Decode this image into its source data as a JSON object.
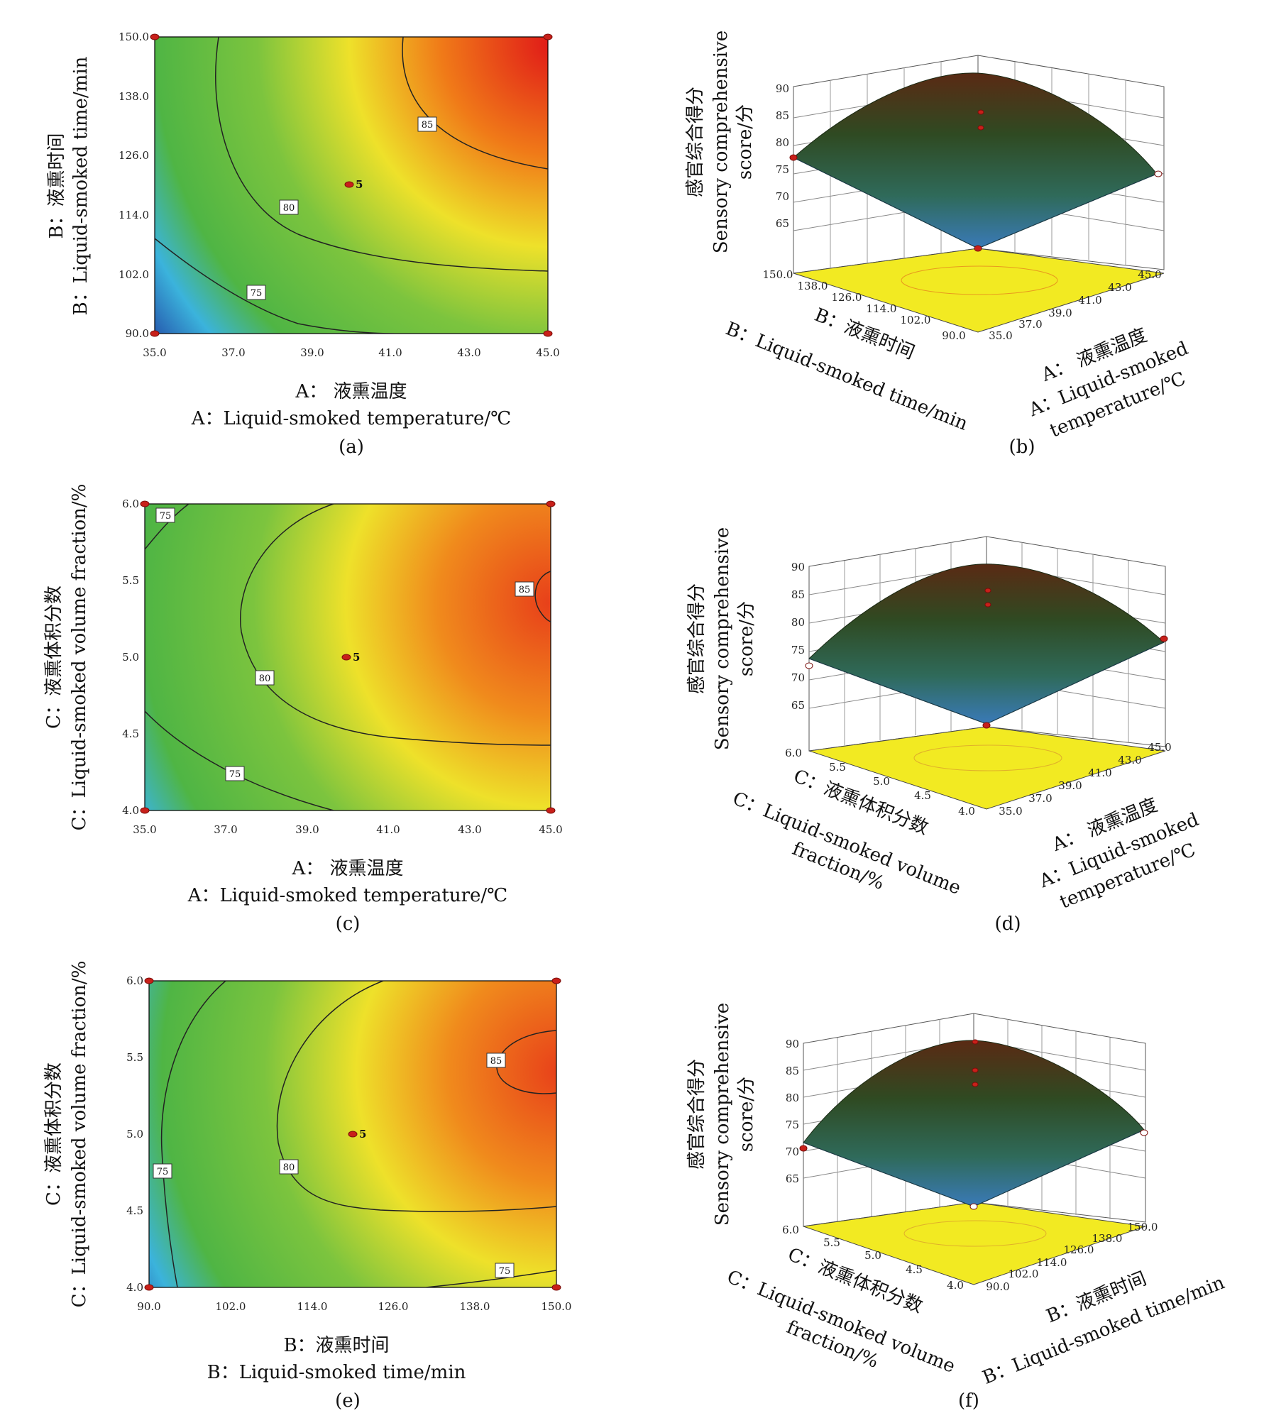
{
  "figure": {
    "captions": [
      "(a)",
      "(b)",
      "(c)",
      "(d)",
      "(e)",
      "(f)"
    ]
  },
  "axis_text": {
    "A_cn": "A： 液熏温度",
    "A_en": "A：Liquid-smoked temperature/℃",
    "A_en_3d": "A：Liquid-smoked",
    "A_en_3d_2": "temperature/℃",
    "B_cn": "B：液熏时间",
    "B_en": "B：Liquid-smoked time/min",
    "C_cn": "C：液熏体积分数",
    "C_en": "C：Liquid-smoked volume fraction/%",
    "C_en_3d": "C：Liquid-smoked volume",
    "C_en_3d_2": "fraction/%",
    "Z_cn": "感官综合得分",
    "Z_en": "Sensory comprehensive",
    "Z_en_2": "score/分"
  },
  "chart_data": [
    {
      "panel": "(a)",
      "type": "heatmap",
      "subtype": "contour",
      "x_factor": "A",
      "y_factor": "B",
      "xlabel": "A： 液熏温度 / A：Liquid-smoked temperature/℃",
      "ylabel": "B：液熏时间 / B：Liquid-smoked time/min",
      "xlim": [
        35.0,
        45.0
      ],
      "ylim": [
        90.0,
        150.0
      ],
      "xticks": [
        "35.0",
        "37.0",
        "39.0",
        "41.0",
        "43.0",
        "45.0"
      ],
      "yticks": [
        "90.0",
        "102.0",
        "114.0",
        "126.0",
        "138.0",
        "150.0"
      ],
      "contour_levels": [
        75,
        80,
        85
      ],
      "contour_labels": [
        "75",
        "80",
        "85"
      ],
      "center_point": {
        "x": 40.0,
        "y": 120.0,
        "label": "5"
      },
      "design_points": [
        [
          35.0,
          90.0
        ],
        [
          45.0,
          90.0
        ],
        [
          35.0,
          150.0
        ],
        [
          45.0,
          150.0
        ]
      ],
      "color_scale": [
        "#1f3fa0",
        "#3aa8e0",
        "#6cc04a",
        "#ecea2a",
        "#f08a1c",
        "#e21c1c"
      ]
    },
    {
      "panel": "(b)",
      "type": "surface",
      "x_factor": "A",
      "y_factor": "B",
      "xticks": [
        "35.0",
        "37.0",
        "39.0",
        "41.0",
        "43.0",
        "45.0"
      ],
      "yticks": [
        "90.0",
        "102.0",
        "114.0",
        "126.0",
        "138.0",
        "150.0"
      ],
      "zticks": [
        "65",
        "70",
        "75",
        "80",
        "85",
        "90"
      ],
      "zlabel": "感官综合得分 / Sensory comprehensive score/分"
    },
    {
      "panel": "(c)",
      "type": "heatmap",
      "subtype": "contour",
      "x_factor": "A",
      "y_factor": "C",
      "xlim": [
        35.0,
        45.0
      ],
      "ylim": [
        4.0,
        6.0
      ],
      "xticks": [
        "35.0",
        "37.0",
        "39.0",
        "41.0",
        "43.0",
        "45.0"
      ],
      "yticks": [
        "4.0",
        "4.5",
        "5.0",
        "5.5",
        "6.0"
      ],
      "contour_levels": [
        75,
        75,
        80,
        85
      ],
      "contour_labels": [
        "75",
        "75",
        "80",
        "85"
      ],
      "center_point": {
        "x": 40.0,
        "y": 5.0,
        "label": "5"
      },
      "design_points": [
        [
          35.0,
          4.0
        ],
        [
          45.0,
          4.0
        ],
        [
          35.0,
          6.0
        ],
        [
          45.0,
          6.0
        ]
      ]
    },
    {
      "panel": "(d)",
      "type": "surface",
      "x_factor": "A",
      "y_factor": "C",
      "xticks": [
        "35.0",
        "37.0",
        "39.0",
        "41.0",
        "43.0",
        "45.0"
      ],
      "yticks": [
        "4.0",
        "4.5",
        "5.0",
        "5.5",
        "6.0"
      ],
      "zticks": [
        "65",
        "70",
        "75",
        "80",
        "85",
        "90"
      ]
    },
    {
      "panel": "(e)",
      "type": "heatmap",
      "subtype": "contour",
      "x_factor": "B",
      "y_factor": "C",
      "xlim": [
        90.0,
        150.0
      ],
      "ylim": [
        4.0,
        6.0
      ],
      "xticks": [
        "90.0",
        "102.0",
        "114.0",
        "126.0",
        "138.0",
        "150.0"
      ],
      "yticks": [
        "4.0",
        "4.5",
        "5.0",
        "5.5",
        "6.0"
      ],
      "contour_levels": [
        75,
        75,
        80,
        85
      ],
      "contour_labels": [
        "75",
        "75",
        "80",
        "85"
      ],
      "center_point": {
        "x": 120.0,
        "y": 5.0,
        "label": "5"
      },
      "design_points": [
        [
          90.0,
          4.0
        ],
        [
          150.0,
          4.0
        ],
        [
          90.0,
          6.0
        ],
        [
          150.0,
          6.0
        ]
      ]
    },
    {
      "panel": "(f)",
      "type": "surface",
      "x_factor": "B",
      "y_factor": "C",
      "xticks": [
        "90.0",
        "102.0",
        "114.0",
        "126.0",
        "138.0",
        "150.0"
      ],
      "yticks": [
        "4.0",
        "4.5",
        "5.0",
        "5.5",
        "6.0"
      ],
      "zticks": [
        "65",
        "70",
        "75",
        "80",
        "85",
        "90"
      ]
    }
  ]
}
